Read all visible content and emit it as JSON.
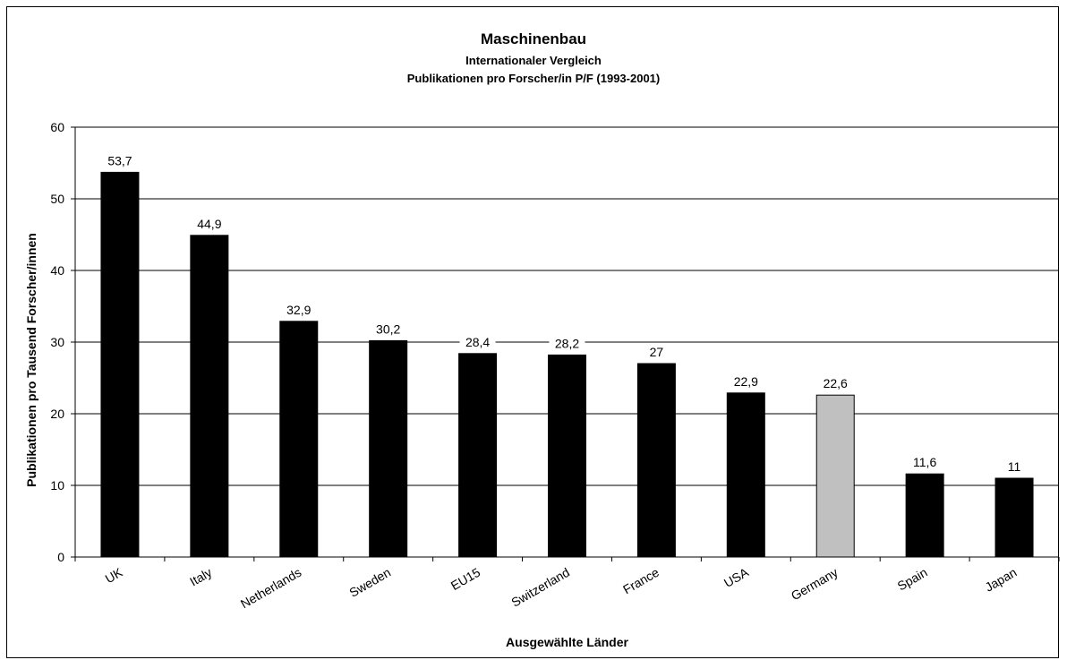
{
  "chart_data": {
    "type": "bar",
    "title": "Maschinenbau",
    "subtitle": "Internationaler Vergleich",
    "subtitle2": "Publikationen pro Forscher/in P/F (1993-2001)",
    "xlabel": "Ausgewählte Länder",
    "ylabel": "Publikationen pro Tausend Forscher/innen",
    "categories": [
      "UK",
      "Italy",
      "Netherlands",
      "Sweden",
      "EU15",
      "Switzerland",
      "France",
      "USA",
      "Germany",
      "Spain",
      "Japan"
    ],
    "values": [
      53.7,
      44.9,
      32.9,
      30.2,
      28.4,
      28.2,
      27,
      22.9,
      22.6,
      11.6,
      11
    ],
    "value_labels": [
      "53,7",
      "44,9",
      "32,9",
      "30,2",
      "28,4",
      "28,2",
      "27",
      "22,9",
      "22,6",
      "11,6",
      "11"
    ],
    "yticks": [
      0,
      10,
      20,
      30,
      40,
      50,
      60
    ],
    "ylim": [
      0,
      60
    ],
    "grid": true,
    "bar_color": "#000000",
    "highlight_category": "Germany",
    "highlight_color": "#c0c0c0"
  }
}
